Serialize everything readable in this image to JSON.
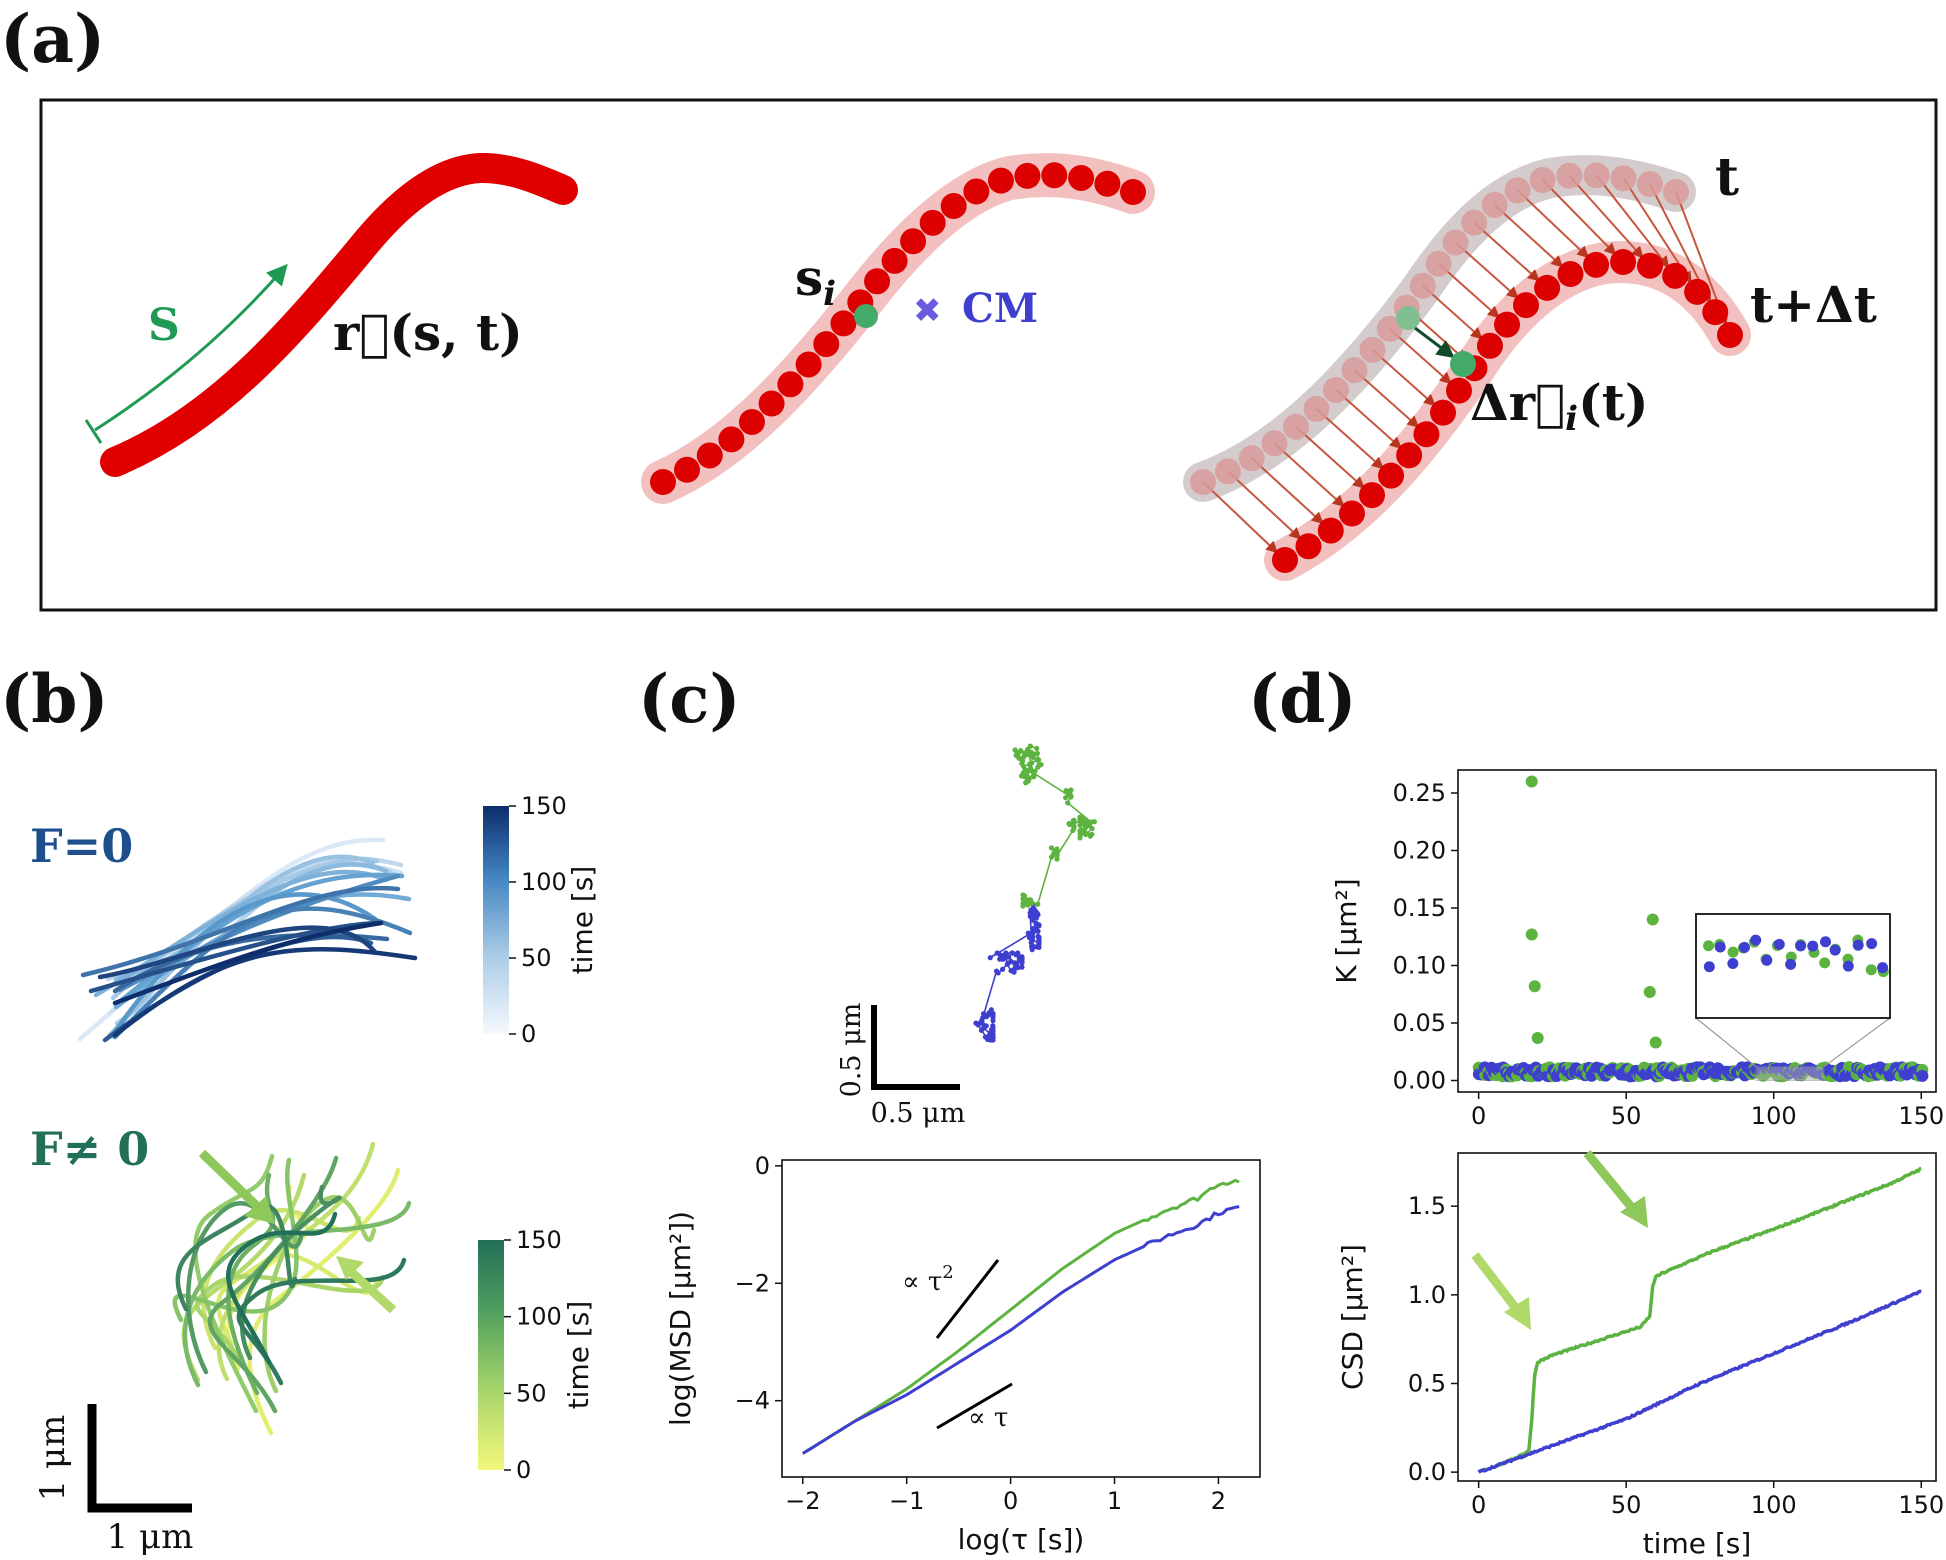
{
  "labels": {
    "a": "(a)",
    "b": "(b)",
    "c": "(c)",
    "d": "(d)"
  },
  "panel_a": {
    "arc_label": "S",
    "position_label": "r⃗(s, t)",
    "bead_label": "s",
    "bead_sub": "i",
    "cm_label": "CM",
    "time_label": "t",
    "time_next_label": "t+Δt",
    "disp_label": "Δr⃗",
    "disp_sub": "i",
    "disp_arg": "(t)"
  },
  "panel_b": {
    "f0_label": "F=0",
    "fne0_label": "F≠ 0",
    "colorbar_title": "time [s]",
    "colorbar_ticks": [
      "0",
      "50",
      "100",
      "150"
    ],
    "scale_label_x": "1 μm",
    "scale_label_y": "1 μm",
    "colors": {
      "blues_dark": "#0d2d6b",
      "blues_light": "#e8f0fb",
      "greens_dark": "#23705a",
      "greens_light": "#f4f77a"
    }
  },
  "panel_c": {
    "scale_label_x": "0.5 μm",
    "scale_label_y": "0.5 μm",
    "slope2_label": "∝ τ",
    "slope2_sup": "2",
    "slope1_label": "∝ τ",
    "colors": {
      "green": "#5cb340",
      "blue": "#3f3fcf"
    }
  },
  "panel_d": {
    "colors": {
      "green": "#5cb340",
      "blue": "#3f3fcf"
    }
  },
  "chart_data": [
    {
      "type": "line",
      "panel": "c-lower",
      "xlabel": "log(τ [s])",
      "ylabel": "log(MSD [μm²])",
      "xlim": [
        -2.2,
        2.4
      ],
      "ylim": [
        -5.3,
        0.1
      ],
      "xticks": [
        "−2",
        "−1",
        "0",
        "1",
        "2"
      ],
      "yticks": [
        "0",
        "−2",
        "−4"
      ],
      "series": [
        {
          "color": "green",
          "x": [
            -2.0,
            -1.5,
            -1.0,
            -0.5,
            0.0,
            0.5,
            1.0,
            1.5,
            1.8,
            2.0,
            2.2
          ],
          "y": [
            -4.9,
            -4.35,
            -3.8,
            -3.15,
            -2.45,
            -1.75,
            -1.15,
            -0.75,
            -0.55,
            -0.3,
            -0.25
          ]
        },
        {
          "color": "blue",
          "x": [
            -2.0,
            -1.5,
            -1.0,
            -0.5,
            0.0,
            0.5,
            1.0,
            1.5,
            1.8,
            2.0,
            2.2
          ],
          "y": [
            -4.9,
            -4.35,
            -3.9,
            -3.35,
            -2.8,
            -2.15,
            -1.6,
            -1.2,
            -1.0,
            -0.8,
            -0.7
          ]
        }
      ]
    },
    {
      "type": "scatter",
      "panel": "d-upper",
      "ylabel": "K [μm²]",
      "xlim": [
        -7,
        155
      ],
      "ylim": [
        -0.01,
        0.27
      ],
      "xticks": [
        "0",
        "50",
        "100",
        "150"
      ],
      "yticks": [
        "0.00",
        "0.05",
        "0.10",
        "0.15",
        "0.20",
        "0.25"
      ],
      "inset_range_x": [
        94,
        117
      ],
      "series": [
        {
          "color": "green",
          "outliers": [
            [
              18,
              0.26
            ],
            [
              18,
              0.127
            ],
            [
              19,
              0.082
            ],
            [
              20,
              0.037
            ],
            [
              59,
              0.14
            ],
            [
              58,
              0.077
            ],
            [
              60,
              0.033
            ]
          ],
          "baseline": 0.007
        },
        {
          "color": "blue",
          "baseline": 0.007
        }
      ]
    },
    {
      "type": "line",
      "panel": "d-lower",
      "xlabel": "time [s]",
      "ylabel": "CSD [μm²]",
      "xlim": [
        -7,
        155
      ],
      "ylim": [
        -0.05,
        1.8
      ],
      "xticks": [
        "0",
        "50",
        "100",
        "150"
      ],
      "yticks": [
        "0.0",
        "0.5",
        "1.0",
        "1.5"
      ],
      "series": [
        {
          "color": "green",
          "x": [
            0,
            10,
            17,
            18,
            19,
            20,
            25,
            40,
            55,
            58,
            59,
            60,
            62,
            80,
            100,
            120,
            140,
            150
          ],
          "y": [
            0.0,
            0.06,
            0.12,
            0.3,
            0.55,
            0.62,
            0.66,
            0.74,
            0.82,
            0.88,
            1.05,
            1.1,
            1.12,
            1.25,
            1.37,
            1.5,
            1.63,
            1.71
          ]
        },
        {
          "color": "blue",
          "x": [
            0,
            25,
            50,
            75,
            100,
            125,
            150
          ],
          "y": [
            0.0,
            0.15,
            0.3,
            0.5,
            0.67,
            0.84,
            1.02
          ]
        }
      ]
    }
  ]
}
